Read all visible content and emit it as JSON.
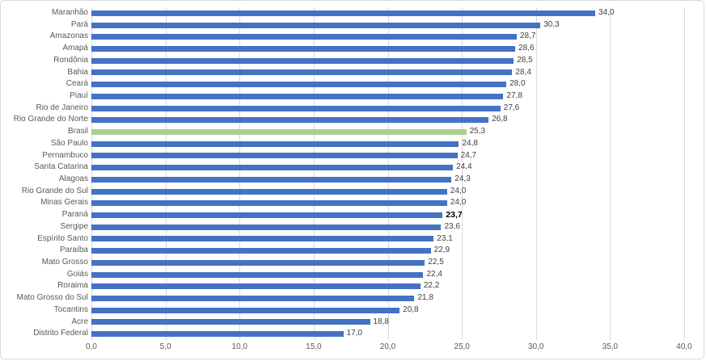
{
  "chart_data": {
    "type": "bar",
    "orientation": "horizontal",
    "title": "",
    "xlabel": "",
    "ylabel": "",
    "xlim": [
      0,
      40
    ],
    "grid": true,
    "legend": false,
    "x_tick_values": [
      0,
      5,
      10,
      15,
      20,
      25,
      30,
      35,
      40
    ],
    "x_tick_labels": [
      "0,0",
      "5,0",
      "10,0",
      "15,0",
      "20,0",
      "25,0",
      "30,0",
      "35,0",
      "40,0"
    ],
    "categories": [
      "Maranhão",
      "Pará",
      "Amazonas",
      "Amapá",
      "Rondônia",
      "Bahia",
      "Ceará",
      "Piauí",
      "Rio de Janeiro",
      "Rio Grande do Norte",
      "Brasil",
      "São Paulo",
      "Pernambuco",
      "Santa Catarina",
      "Alagoas",
      "Rio Grande do Sul",
      "Minas Gerais",
      "Paraná",
      "Sergipe",
      "Espírito Santo",
      "Paraíba",
      "Mato Grosso",
      "Goiás",
      "Roraima",
      "Mato Grosso do Sul",
      "Tocantins",
      "Acre",
      "Distrito Federal"
    ],
    "values": [
      34.0,
      30.3,
      28.7,
      28.6,
      28.5,
      28.4,
      28.0,
      27.8,
      27.6,
      26.8,
      25.3,
      24.8,
      24.7,
      24.4,
      24.3,
      24.0,
      24.0,
      23.7,
      23.6,
      23.1,
      22.9,
      22.5,
      22.4,
      22.2,
      21.8,
      20.8,
      18.8,
      17.0
    ],
    "value_labels": [
      "34,0",
      "30,3",
      "28,7",
      "28,6",
      "28,5",
      "28,4",
      "28,0",
      "27,8",
      "27,6",
      "26,8",
      "25,3",
      "24,8",
      "24,7",
      "24,4",
      "24,3",
      "24,0",
      "24,0",
      "23,7",
      "23,6",
      "23,1",
      "22,9",
      "22,5",
      "22,4",
      "22,2",
      "21,8",
      "20,8",
      "18,8",
      "17,0"
    ],
    "highlight_category": "Brasil",
    "emphasized_value_category": "Paraná",
    "colors": {
      "bar": "#4472c4",
      "highlight_bar": "#a9d08e",
      "gridline": "#d9d9d9",
      "axis_text": "#595959",
      "value_text": "#404040",
      "emphasis_text": "#000000",
      "chart_border": "#d9d9d9",
      "background": "#ffffff"
    }
  }
}
